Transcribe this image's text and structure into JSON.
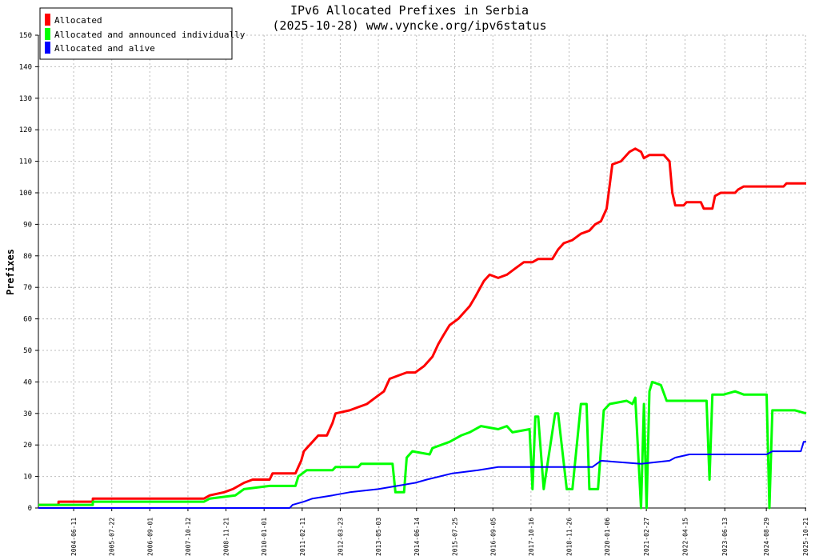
{
  "chart_data": {
    "type": "line",
    "title": "IPv6 Allocated Prefixes in Serbia",
    "subtitle": "(2025-10-28) www.vyncke.org/ipv6status",
    "xlabel": "",
    "ylabel": "Prefixes",
    "ylim": [
      0,
      150
    ],
    "yticks": [
      0,
      10,
      20,
      30,
      40,
      50,
      60,
      70,
      80,
      90,
      100,
      110,
      120,
      130,
      140,
      150
    ],
    "xlim": [
      "2003-06-01",
      "2025-10-28"
    ],
    "xticks": [
      "2004-06-11",
      "2005-07-22",
      "2006-09-01",
      "2007-10-12",
      "2008-11-21",
      "2010-01-01",
      "2011-02-11",
      "2012-03-23",
      "2013-05-03",
      "2014-06-14",
      "2015-07-25",
      "2016-09-05",
      "2017-10-16",
      "2018-11-26",
      "2020-01-06",
      "2021-02-27",
      "2022-04-15",
      "2023-06-13",
      "2024-08-29",
      "2025-10-21"
    ],
    "grid": true,
    "legend_position": "top-left",
    "series": [
      {
        "name": "Allocated",
        "color": "#ff0000",
        "points": [
          [
            "2003-06-01",
            1
          ],
          [
            "2004-01-01",
            1
          ],
          [
            "2004-01-02",
            2
          ],
          [
            "2005-01-01",
            2
          ],
          [
            "2005-01-02",
            3
          ],
          [
            "2008-04-01",
            3
          ],
          [
            "2008-06-01",
            4
          ],
          [
            "2008-11-01",
            5
          ],
          [
            "2009-02-01",
            6
          ],
          [
            "2009-06-01",
            8
          ],
          [
            "2009-09-01",
            9
          ],
          [
            "2010-03-01",
            9
          ],
          [
            "2010-04-01",
            11
          ],
          [
            "2010-12-01",
            11
          ],
          [
            "2011-01-01",
            13
          ],
          [
            "2011-02-01",
            15
          ],
          [
            "2011-03-01",
            18
          ],
          [
            "2011-06-01",
            21
          ],
          [
            "2011-08-01",
            23
          ],
          [
            "2011-11-01",
            23
          ],
          [
            "2012-01-01",
            27
          ],
          [
            "2012-02-01",
            30
          ],
          [
            "2012-07-01",
            31
          ],
          [
            "2012-10-01",
            32
          ],
          [
            "2013-01-01",
            33
          ],
          [
            "2013-04-01",
            35
          ],
          [
            "2013-07-01",
            37
          ],
          [
            "2013-09-01",
            41
          ],
          [
            "2013-12-01",
            42
          ],
          [
            "2014-03-01",
            43
          ],
          [
            "2014-06-01",
            43
          ],
          [
            "2014-09-01",
            45
          ],
          [
            "2014-12-01",
            48
          ],
          [
            "2015-02-01",
            52
          ],
          [
            "2015-04-01",
            55
          ],
          [
            "2015-06-01",
            58
          ],
          [
            "2015-09-01",
            60
          ],
          [
            "2015-11-01",
            62
          ],
          [
            "2016-01-01",
            64
          ],
          [
            "2016-03-01",
            67
          ],
          [
            "2016-06-01",
            72
          ],
          [
            "2016-08-01",
            74
          ],
          [
            "2016-11-01",
            73
          ],
          [
            "2017-02-01",
            74
          ],
          [
            "2017-05-01",
            76
          ],
          [
            "2017-08-01",
            78
          ],
          [
            "2017-11-01",
            78
          ],
          [
            "2018-01-01",
            79
          ],
          [
            "2018-06-01",
            79
          ],
          [
            "2018-08-01",
            82
          ],
          [
            "2018-10-01",
            84
          ],
          [
            "2019-01-01",
            85
          ],
          [
            "2019-04-01",
            87
          ],
          [
            "2019-07-01",
            88
          ],
          [
            "2019-09-01",
            90
          ],
          [
            "2019-11-01",
            91
          ],
          [
            "2020-01-01",
            95
          ],
          [
            "2020-03-01",
            109
          ],
          [
            "2020-06-01",
            110
          ],
          [
            "2020-09-01",
            113
          ],
          [
            "2020-11-01",
            114
          ],
          [
            "2021-01-01",
            113
          ],
          [
            "2021-02-01",
            111
          ],
          [
            "2021-04-01",
            112
          ],
          [
            "2021-09-01",
            112
          ],
          [
            "2021-11-01",
            110
          ],
          [
            "2021-12-01",
            100
          ],
          [
            "2022-01-01",
            96
          ],
          [
            "2022-04-01",
            96
          ],
          [
            "2022-05-01",
            97
          ],
          [
            "2022-10-01",
            97
          ],
          [
            "2022-11-01",
            95
          ],
          [
            "2023-02-01",
            95
          ],
          [
            "2023-03-01",
            99
          ],
          [
            "2023-05-01",
            100
          ],
          [
            "2023-10-01",
            100
          ],
          [
            "2023-11-01",
            101
          ],
          [
            "2024-01-01",
            102
          ],
          [
            "2024-03-01",
            102
          ],
          [
            "2025-03-01",
            102
          ],
          [
            "2025-04-01",
            103
          ],
          [
            "2025-10-28",
            103
          ]
        ]
      },
      {
        "name": "Allocated and announced individually",
        "color": "#00ff00",
        "points": [
          [
            "2003-06-01",
            1
          ],
          [
            "2005-01-01",
            1
          ],
          [
            "2005-01-02",
            2
          ],
          [
            "2008-04-01",
            2
          ],
          [
            "2008-06-01",
            3
          ],
          [
            "2009-03-01",
            4
          ],
          [
            "2009-06-01",
            6
          ],
          [
            "2010-03-01",
            7
          ],
          [
            "2010-12-01",
            7
          ],
          [
            "2011-01-01",
            10
          ],
          [
            "2011-04-01",
            12
          ],
          [
            "2012-01-01",
            12
          ],
          [
            "2012-02-01",
            13
          ],
          [
            "2012-10-01",
            13
          ],
          [
            "2012-11-01",
            14
          ],
          [
            "2013-10-01",
            14
          ],
          [
            "2013-11-01",
            5
          ],
          [
            "2014-02-01",
            5
          ],
          [
            "2014-03-01",
            16
          ],
          [
            "2014-05-01",
            18
          ],
          [
            "2014-11-01",
            17
          ],
          [
            "2014-12-01",
            19
          ],
          [
            "2015-06-01",
            21
          ],
          [
            "2015-10-01",
            23
          ],
          [
            "2016-01-01",
            24
          ],
          [
            "2016-05-01",
            26
          ],
          [
            "2016-11-01",
            25
          ],
          [
            "2017-02-01",
            26
          ],
          [
            "2017-04-01",
            24
          ],
          [
            "2017-10-01",
            25
          ],
          [
            "2017-11-01",
            6
          ],
          [
            "2017-12-01",
            29
          ],
          [
            "2018-01-01",
            29
          ],
          [
            "2018-03-01",
            6
          ],
          [
            "2018-07-01",
            30
          ],
          [
            "2018-08-01",
            30
          ],
          [
            "2018-11-01",
            6
          ],
          [
            "2019-01-01",
            6
          ],
          [
            "2019-04-01",
            33
          ],
          [
            "2019-06-01",
            33
          ],
          [
            "2019-07-01",
            6
          ],
          [
            "2019-10-01",
            6
          ],
          [
            "2019-12-01",
            31
          ],
          [
            "2020-02-01",
            33
          ],
          [
            "2020-08-01",
            34
          ],
          [
            "2020-10-01",
            33
          ],
          [
            "2020-11-01",
            35
          ],
          [
            "2021-01-01",
            0
          ],
          [
            "2021-02-01",
            33
          ],
          [
            "2021-03-01",
            0
          ],
          [
            "2021-04-01",
            37
          ],
          [
            "2021-05-01",
            40
          ],
          [
            "2021-08-01",
            39
          ],
          [
            "2021-10-01",
            34
          ],
          [
            "2022-12-01",
            34
          ],
          [
            "2023-01-01",
            9
          ],
          [
            "2023-02-01",
            36
          ],
          [
            "2023-06-01",
            36
          ],
          [
            "2023-10-01",
            37
          ],
          [
            "2024-01-01",
            36
          ],
          [
            "2024-09-01",
            36
          ],
          [
            "2024-10-01",
            0
          ],
          [
            "2024-11-01",
            31
          ],
          [
            "2025-05-01",
            31
          ],
          [
            "2025-07-01",
            31
          ],
          [
            "2025-10-28",
            30
          ]
        ]
      },
      {
        "name": "Allocated and alive",
        "color": "#0000ff",
        "points": [
          [
            "2003-06-01",
            0
          ],
          [
            "2010-10-01",
            0
          ],
          [
            "2010-11-01",
            1
          ],
          [
            "2011-03-01",
            2
          ],
          [
            "2011-06-01",
            3
          ],
          [
            "2012-01-01",
            4
          ],
          [
            "2012-07-01",
            5
          ],
          [
            "2013-05-01",
            6
          ],
          [
            "2014-06-01",
            8
          ],
          [
            "2014-10-01",
            9
          ],
          [
            "2015-07-01",
            11
          ],
          [
            "2016-04-01",
            12
          ],
          [
            "2016-11-01",
            13
          ],
          [
            "2019-08-01",
            13
          ],
          [
            "2019-11-01",
            15
          ],
          [
            "2021-01-01",
            14
          ],
          [
            "2021-11-01",
            15
          ],
          [
            "2022-01-01",
            16
          ],
          [
            "2022-06-01",
            17
          ],
          [
            "2024-09-01",
            17
          ],
          [
            "2024-11-01",
            18
          ],
          [
            "2025-09-01",
            18
          ],
          [
            "2025-10-01",
            21
          ],
          [
            "2025-10-28",
            21
          ]
        ]
      }
    ]
  }
}
